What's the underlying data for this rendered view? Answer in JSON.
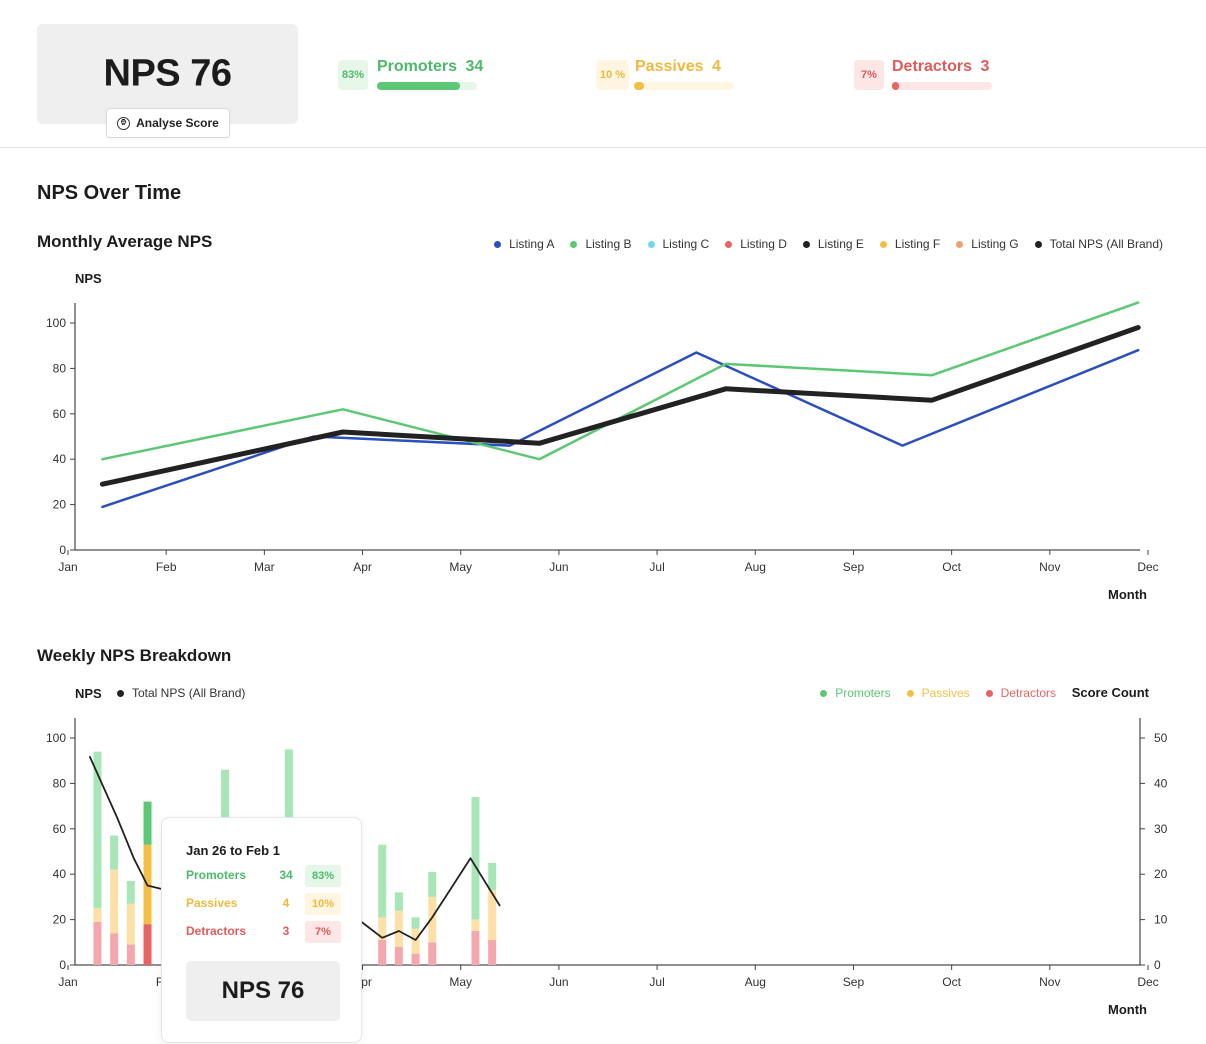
{
  "header": {
    "nps_label": "NPS 76",
    "analyse_button": "Analyse Score",
    "analyse_icon": "clock-icon",
    "promoters": {
      "pct": "83%",
      "label": "Promoters",
      "count": "34",
      "fraction": 0.83,
      "color": "#5cc774"
    },
    "passives": {
      "pct": "10 %",
      "label": "Passives",
      "count": "4",
      "fraction": 0.1,
      "color": "#f3bf45"
    },
    "detractors": {
      "pct": "7%",
      "label": "Detractors",
      "count": "3",
      "fraction": 0.07,
      "color": "#e86464"
    }
  },
  "section_title": "NPS Over Time",
  "chart_data": [
    {
      "type": "line",
      "title": "Monthly Average NPS",
      "ylabel": "NPS",
      "xlabel": "Month",
      "ylim": [
        0,
        100
      ],
      "yticks": [
        0,
        20,
        40,
        60,
        80,
        100
      ],
      "categories": [
        "Jan",
        "Feb",
        "Mar",
        "Apr",
        "May",
        "Jun",
        "Jul",
        "Aug",
        "Sep",
        "Oct",
        "Nov",
        "Dec"
      ],
      "legend": [
        {
          "name": "Listing A",
          "color": "#2b4fbd"
        },
        {
          "name": "Listing B",
          "color": "#5cc774"
        },
        {
          "name": "Listing C",
          "color": "#6fd8ea"
        },
        {
          "name": "Listing D",
          "color": "#e86464"
        },
        {
          "name": "Listing E",
          "color": "#222222"
        },
        {
          "name": "Listing F",
          "color": "#f3bf45"
        },
        {
          "name": "Listing G",
          "color": "#f0a070"
        },
        {
          "name": "Total NPS (All Brand)",
          "color": "#222222"
        }
      ],
      "legend_position": "top-right",
      "series": [
        {
          "name": "Listing A",
          "color": "#2b4fbd",
          "width": 2.5,
          "points": [
            [
              0.35,
              19
            ],
            [
              2.5,
              50
            ],
            [
              4.5,
              46
            ],
            [
              6.4,
              87
            ],
            [
              8.5,
              46
            ],
            [
              10.9,
              88
            ]
          ]
        },
        {
          "name": "Listing B",
          "color": "#5cc774",
          "width": 2.5,
          "points": [
            [
              0.35,
              40
            ],
            [
              2.8,
              62
            ],
            [
              4.8,
              40
            ],
            [
              6.7,
              82
            ],
            [
              8.8,
              77
            ],
            [
              10.9,
              109
            ]
          ]
        },
        {
          "name": "Total NPS (All Brand)",
          "color": "#222222",
          "width": 5,
          "points": [
            [
              0.35,
              29
            ],
            [
              2.8,
              52
            ],
            [
              4.8,
              47
            ],
            [
              6.7,
              71
            ],
            [
              8.8,
              66
            ],
            [
              10.9,
              98
            ]
          ]
        }
      ]
    },
    {
      "type": "bar",
      "title": "Weekly NPS Breakdown",
      "ylabel": "NPS",
      "y2label": "Score Count",
      "xlabel": "Month",
      "ylim": [
        0,
        100
      ],
      "y2lim": [
        0,
        50
      ],
      "yticks": [
        0,
        20,
        40,
        60,
        80,
        100
      ],
      "y2ticks": [
        0,
        10,
        20,
        30,
        40,
        50
      ],
      "categories": [
        "Jan",
        "Feb",
        "Mar",
        "Apr",
        "May",
        "Jun",
        "Jul",
        "Aug",
        "Sep",
        "Oct",
        "Nov",
        "Dec"
      ],
      "legend_left": [
        {
          "name": "Total NPS (All Brand)",
          "color": "#222222"
        }
      ],
      "legend_right": [
        {
          "name": "Promoters",
          "color": "#5cc774"
        },
        {
          "name": "Passives",
          "color": "#f3bf45"
        },
        {
          "name": "Detractors",
          "color": "#e86464"
        }
      ],
      "bars": [
        {
          "x": 0.3,
          "detractors": 19,
          "passives": 6,
          "promoters": 69
        },
        {
          "x": 0.47,
          "detractors": 14,
          "passives": 28,
          "promoters": 15
        },
        {
          "x": 0.64,
          "detractors": 9,
          "passives": 18,
          "promoters": 10
        },
        {
          "x": 0.81,
          "detractors": 18,
          "passives": 35,
          "promoters": 19,
          "highlight": true
        },
        {
          "x": 1.6,
          "detractors": 20,
          "passives": 20,
          "promoters": 46
        },
        {
          "x": 2.25,
          "detractors": 25,
          "passives": 25,
          "promoters": 45
        },
        {
          "x": 3.2,
          "detractors": 11,
          "passives": 10,
          "promoters": 32
        },
        {
          "x": 3.37,
          "detractors": 8,
          "passives": 16,
          "promoters": 8
        },
        {
          "x": 3.54,
          "detractors": 5,
          "passives": 11,
          "promoters": 5
        },
        {
          "x": 3.71,
          "detractors": 10,
          "passives": 20,
          "promoters": 11
        },
        {
          "x": 4.15,
          "detractors": 15,
          "passives": 5,
          "promoters": 54
        },
        {
          "x": 4.32,
          "detractors": 11,
          "passives": 22,
          "promoters": 12
        }
      ],
      "line": {
        "name": "Total NPS (All Brand)",
        "color": "#222222",
        "points": [
          [
            0.22,
            92
          ],
          [
            0.5,
            65
          ],
          [
            0.67,
            47
          ],
          [
            0.81,
            35
          ],
          [
            1.0,
            33
          ],
          [
            2.9,
            22
          ],
          [
            3.2,
            12
          ],
          [
            3.37,
            15
          ],
          [
            3.54,
            11
          ],
          [
            3.71,
            21
          ],
          [
            4.1,
            47
          ],
          [
            4.4,
            26
          ]
        ]
      }
    }
  ],
  "tooltip": {
    "title": "Jan 26 to Feb 1",
    "rows": [
      {
        "name": "Promoters",
        "count": "34",
        "pct": "83%"
      },
      {
        "name": "Passives",
        "count": "4",
        "pct": "10%"
      },
      {
        "name": "Detractors",
        "count": "3",
        "pct": "7%"
      }
    ],
    "score": "NPS 76"
  }
}
